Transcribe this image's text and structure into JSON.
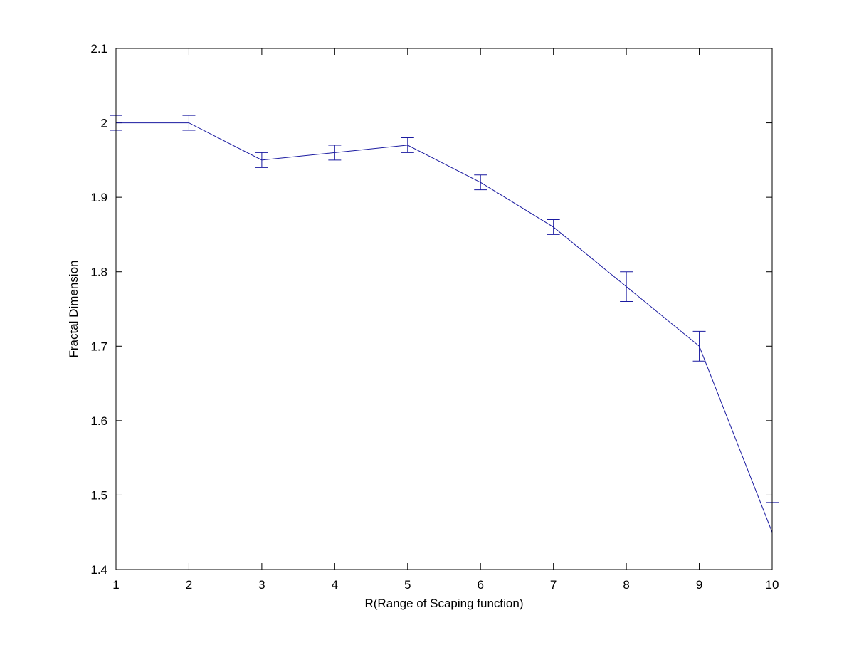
{
  "chart_data": {
    "type": "line",
    "title": "",
    "xlabel": "R(Range of Scaping function)",
    "ylabel": "Fractal Dimension",
    "xlim": [
      1,
      10
    ],
    "ylim": [
      1.4,
      2.1
    ],
    "xticks": [
      "1",
      "2",
      "3",
      "4",
      "5",
      "6",
      "7",
      "8",
      "9",
      "10"
    ],
    "yticks": [
      "1.4",
      "1.5",
      "1.6",
      "1.7",
      "1.8",
      "1.9",
      "2",
      "2.1"
    ],
    "grid": false,
    "line_color": "#1a1aa0",
    "series": [
      {
        "x": [
          1,
          2,
          3,
          4,
          5,
          6,
          7,
          8,
          9,
          10
        ],
        "y": [
          2.0,
          2.0,
          1.95,
          1.96,
          1.97,
          1.92,
          1.86,
          1.78,
          1.7,
          1.45
        ],
        "err_low": [
          1.99,
          1.99,
          1.94,
          1.95,
          1.96,
          1.91,
          1.85,
          1.76,
          1.68,
          1.41
        ],
        "err_high": [
          2.01,
          2.01,
          1.96,
          1.97,
          1.98,
          1.93,
          1.87,
          1.8,
          1.72,
          1.49
        ]
      }
    ]
  }
}
